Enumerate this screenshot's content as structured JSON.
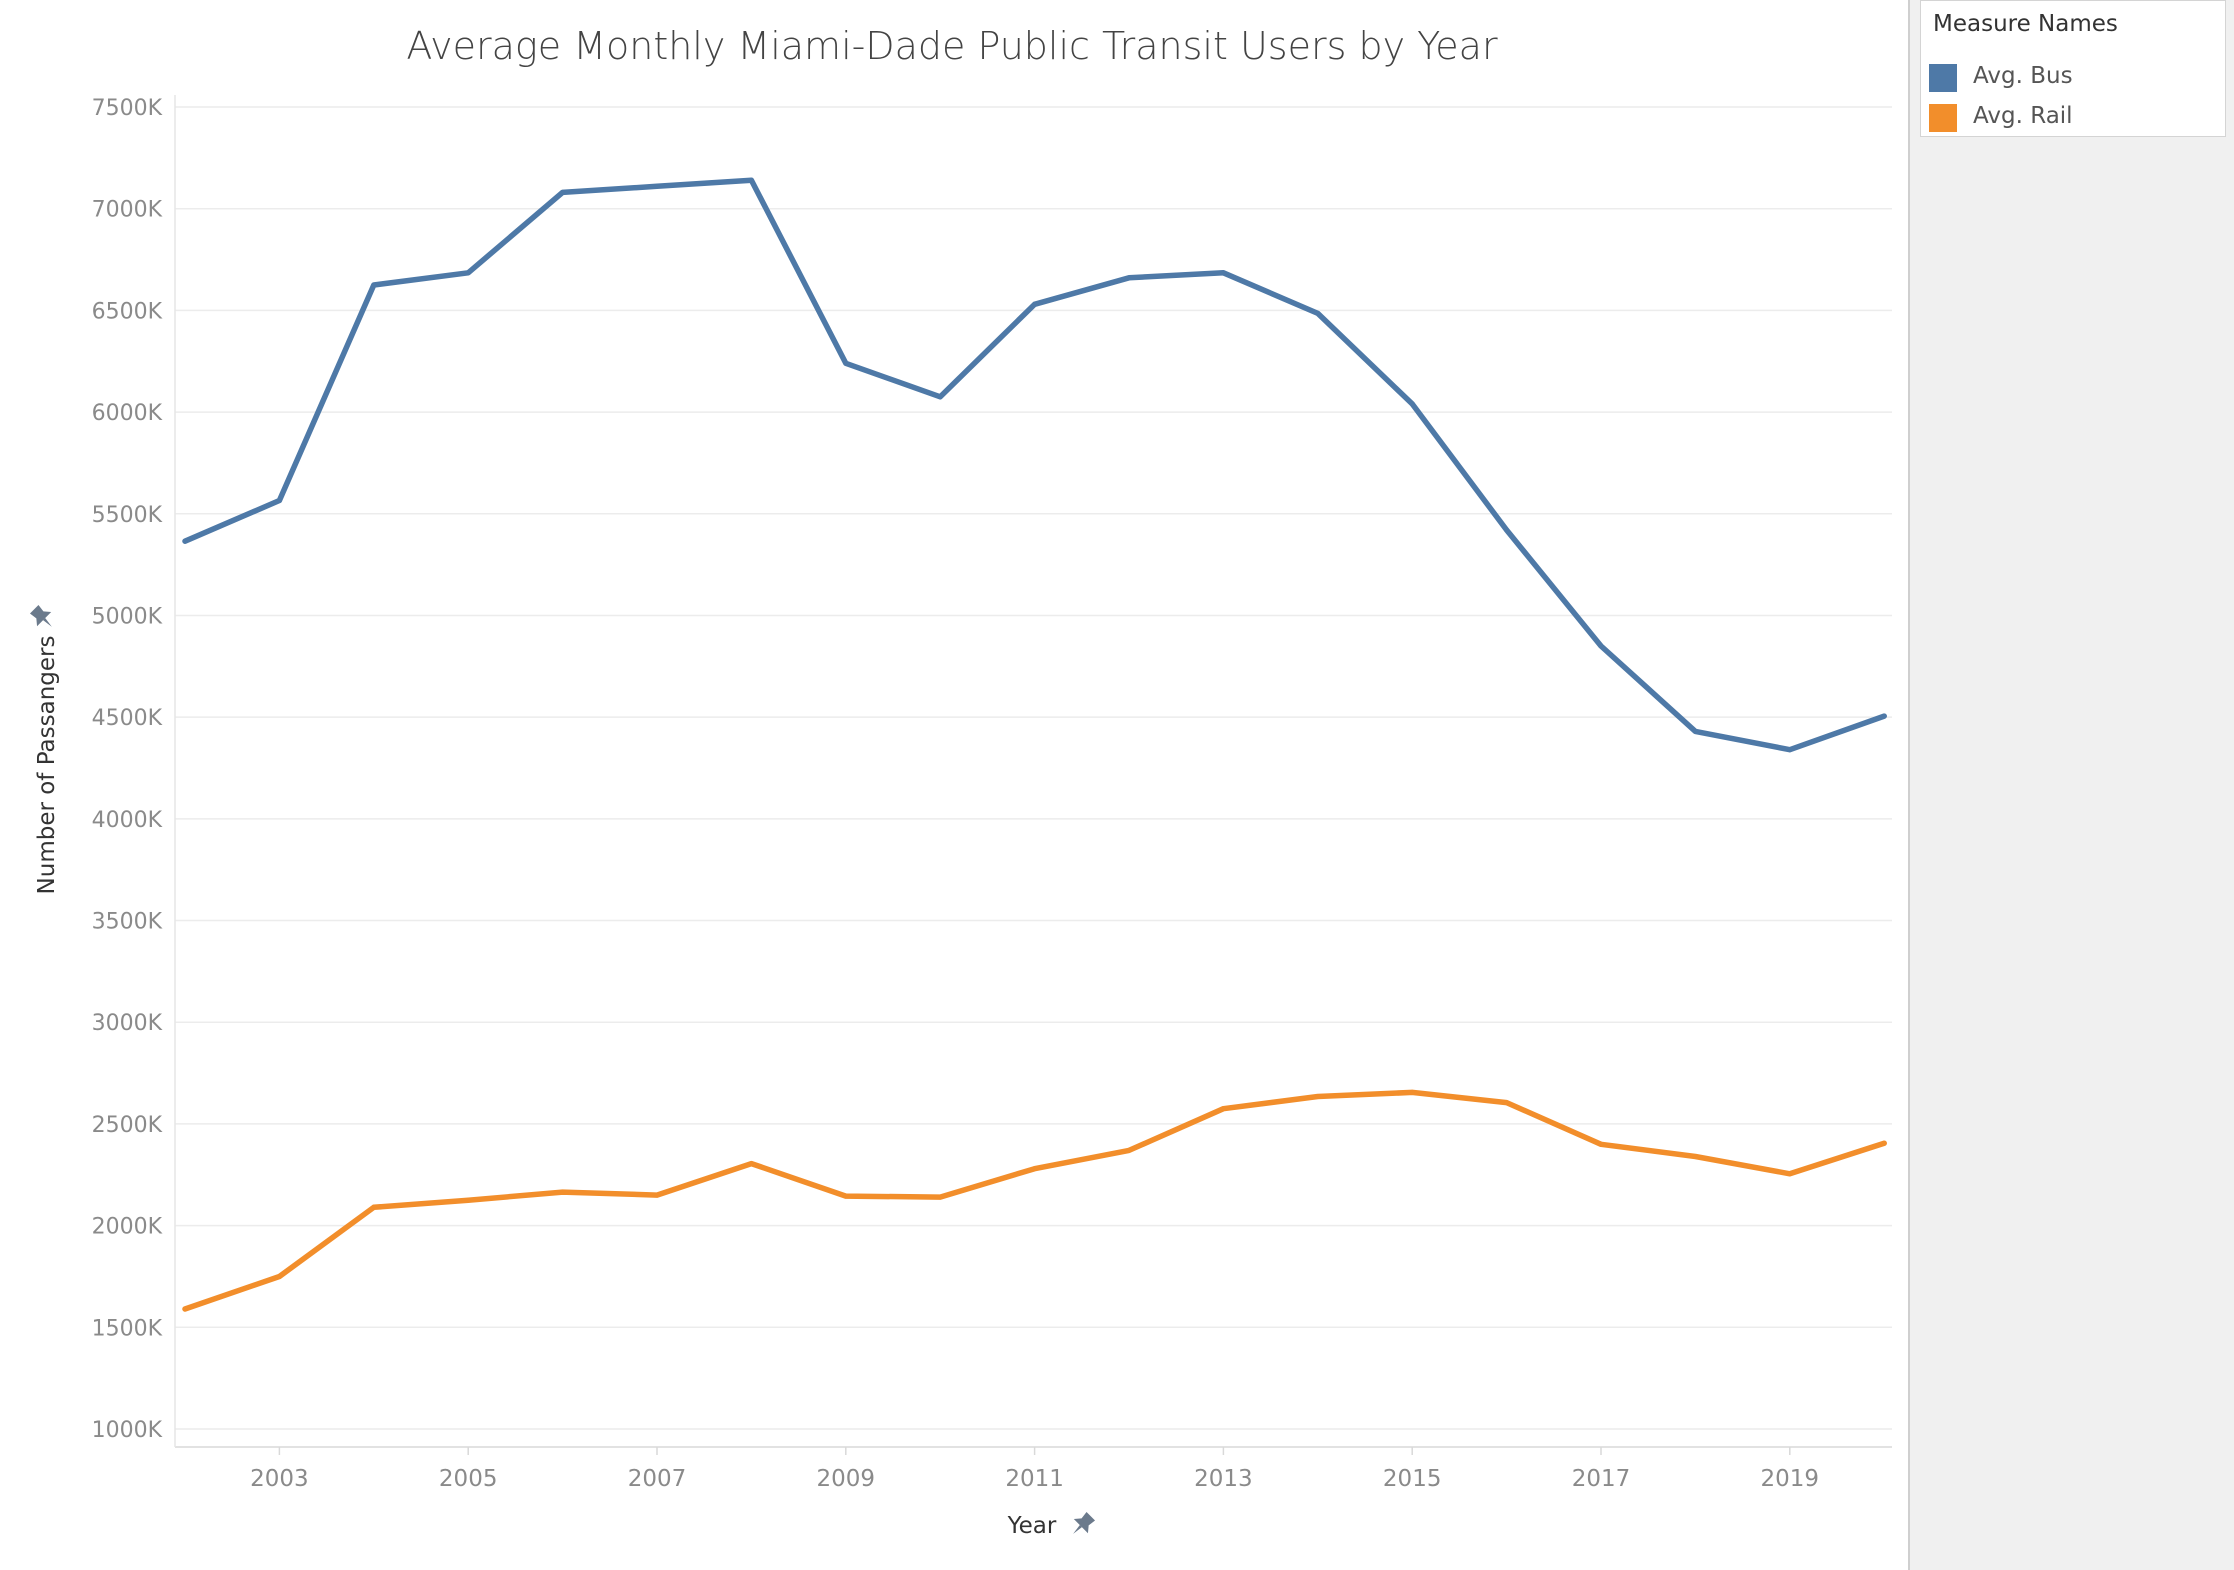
{
  "chart_data": {
    "type": "line",
    "title": "Average Monthly Miami-Dade Public Transit Users by Year",
    "xlabel": "Year",
    "ylabel": "Number of Passangers",
    "x": [
      2002,
      2003,
      2004,
      2005,
      2006,
      2007,
      2008,
      2009,
      2010,
      2011,
      2012,
      2013,
      2014,
      2015,
      2016,
      2017,
      2018,
      2019,
      2020
    ],
    "x_tick_labels": [
      "2003",
      "2005",
      "2007",
      "2009",
      "2011",
      "2013",
      "2015",
      "2017",
      "2019"
    ],
    "y_tick_labels": [
      "7500K",
      "7000K",
      "6500K",
      "6000K",
      "5500K",
      "5000K",
      "4500K",
      "4000K",
      "3500K",
      "3000K",
      "2500K",
      "2000K",
      "1500K",
      "1000K"
    ],
    "ylim": [
      1000,
      7500
    ],
    "y_unit": "K",
    "grid": true,
    "legend_position": "right-panel-top",
    "series": [
      {
        "name": "Avg. Bus",
        "color": "#4e79a7",
        "values": [
          5365,
          5565,
          6625,
          6685,
          7080,
          7110,
          7140,
          6240,
          6075,
          6530,
          6660,
          6685,
          6485,
          6040,
          5420,
          4850,
          4430,
          4340,
          4505
        ]
      },
      {
        "name": "Avg. Rail",
        "color": "#f28e2b",
        "values": [
          1590,
          1750,
          2090,
          2125,
          2165,
          2150,
          2305,
          2145,
          2140,
          2280,
          2370,
          2575,
          2635,
          2655,
          2605,
          2400,
          2340,
          2255,
          2405
        ]
      }
    ]
  },
  "legend": {
    "title": "Measure Names",
    "items": [
      {
        "label": "Avg. Bus",
        "color": "#4e79a7"
      },
      {
        "label": "Avg. Rail",
        "color": "#f28e2b"
      }
    ]
  },
  "icons": {
    "y_axis_pin": "pin-icon",
    "x_axis_pin": "pin-icon"
  }
}
